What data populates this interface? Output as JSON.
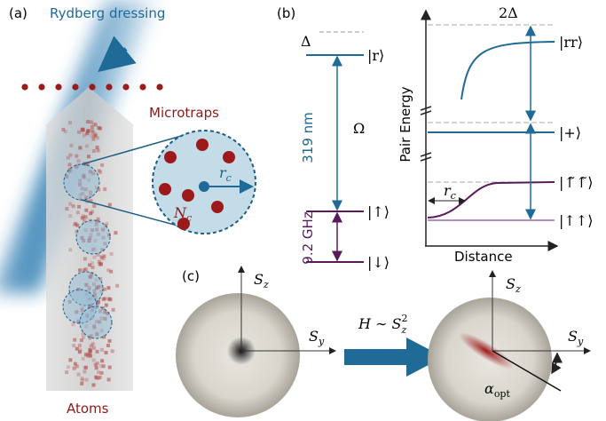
{
  "panel_a": {
    "label": "(a)",
    "beam": "Rydberg dressing",
    "traps": "Microtraps",
    "radius": {
      "text": "r",
      "sub": "c"
    },
    "number": {
      "text": "N",
      "sub": "c"
    },
    "atoms": "Atoms"
  },
  "panel_b": {
    "label": "(b)",
    "detuning": "Δ",
    "rydberg": "|r⟩",
    "rabi": "Ω",
    "laser": "319 nm",
    "up": "|↑⟩",
    "down": "|↓⟩",
    "hyperfine": "9.2 GHz",
    "pair_detuning": "2Δ",
    "pair_rr": "|rr⟩",
    "y_axis": "Pair Energy",
    "plus": "|+⟩",
    "dressed": "|↑̃↑̃⟩",
    "upup": "|↑↑⟩",
    "radius": {
      "text": "r",
      "sub": "c"
    },
    "x_axis": "Distance"
  },
  "panel_c": {
    "label": "(c)",
    "left_z": {
      "text": "S",
      "sub": "z"
    },
    "left_y": {
      "text": "S",
      "sub": "y"
    },
    "hamiltonian": {
      "text": "H ∼ S",
      "sup": "2",
      "sub": "z"
    },
    "right_z": {
      "text": "S",
      "sub": "z"
    },
    "right_y": {
      "text": "S",
      "sub": "y"
    },
    "angle": {
      "text": "α",
      "sub": "opt"
    }
  }
}
